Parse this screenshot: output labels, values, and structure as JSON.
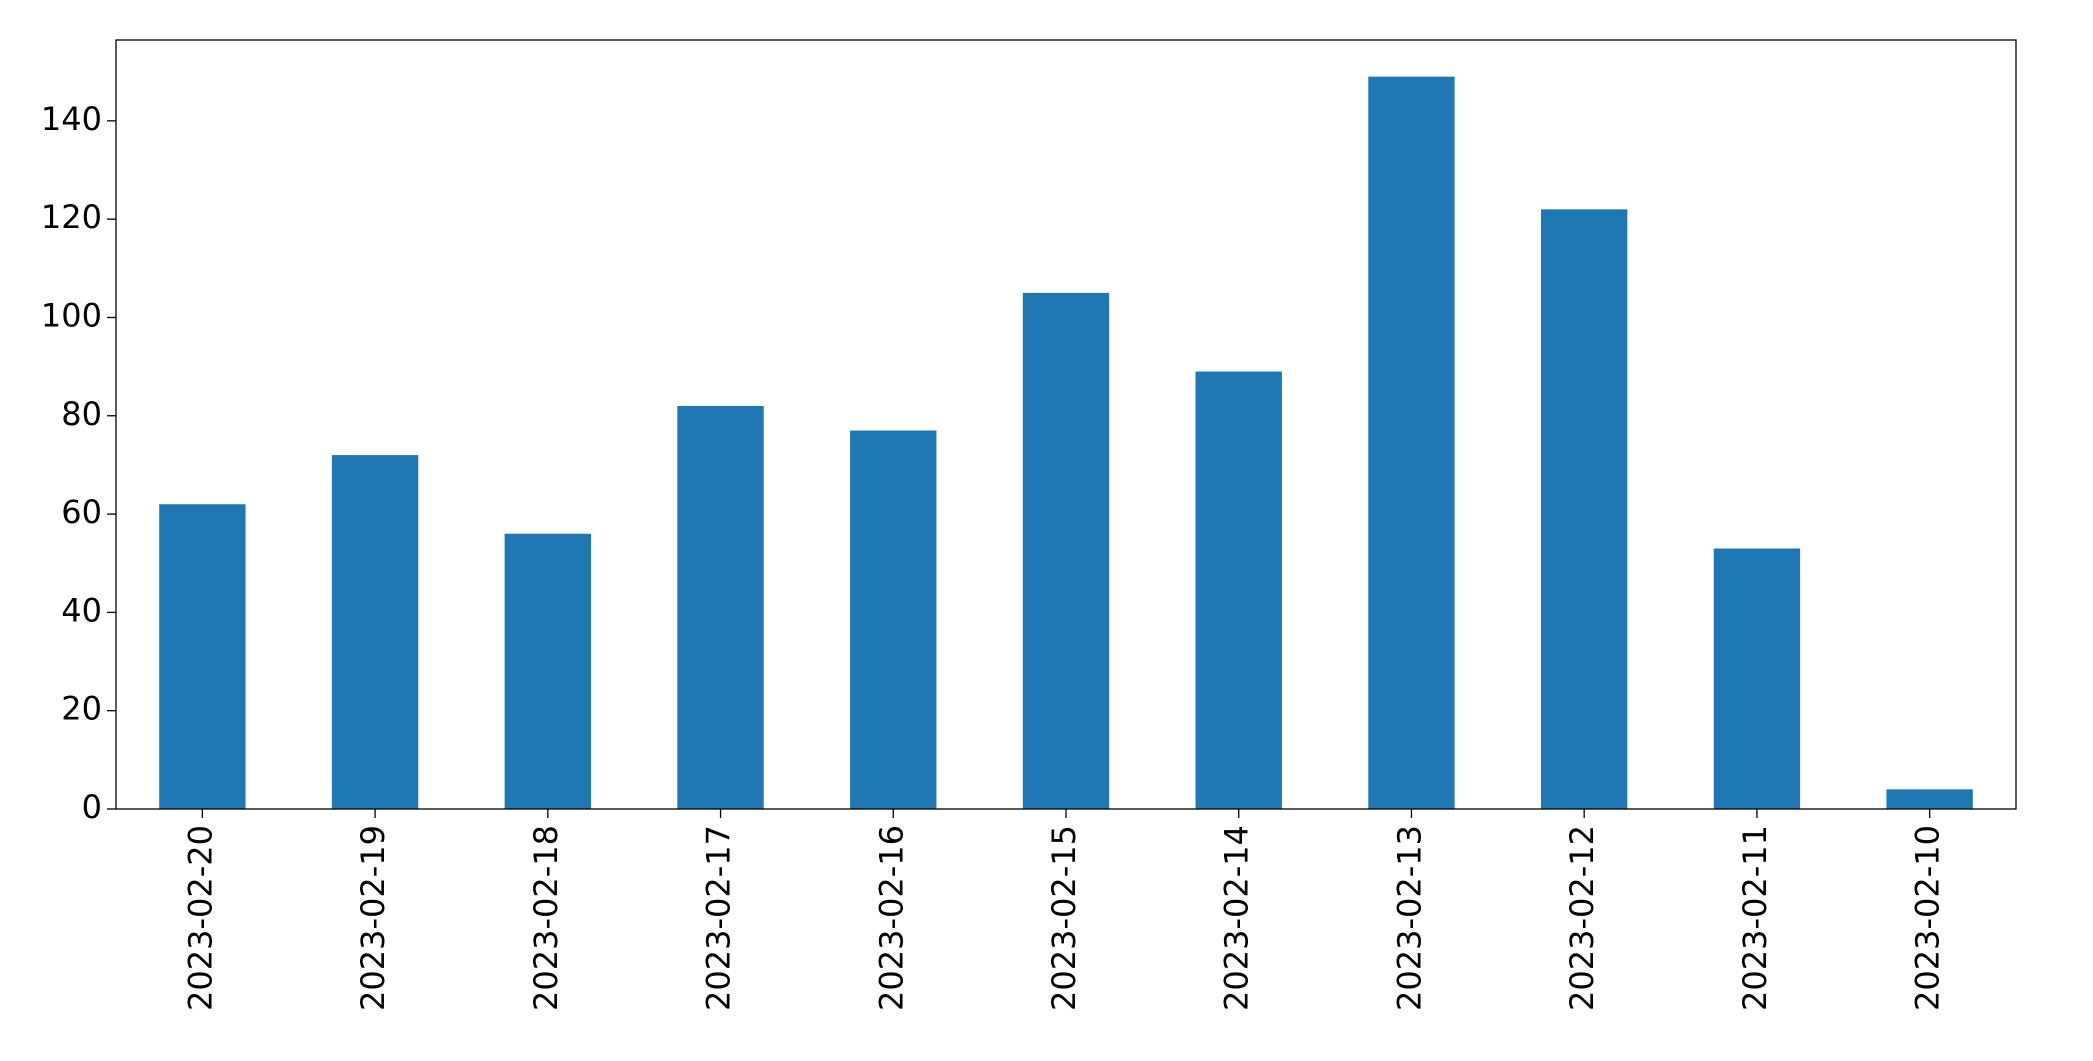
{
  "chart_data": {
    "type": "bar",
    "categories": [
      "2023-02-20",
      "2023-02-19",
      "2023-02-18",
      "2023-02-17",
      "2023-02-16",
      "2023-02-15",
      "2023-02-14",
      "2023-02-13",
      "2023-02-12",
      "2023-02-11",
      "2023-02-10"
    ],
    "values": [
      62,
      72,
      56,
      82,
      77,
      105,
      89,
      149,
      122,
      53,
      4
    ],
    "color": "#1f77b4",
    "ylim": [
      0,
      156.45
    ],
    "yticks": [
      0,
      20,
      40,
      60,
      80,
      100,
      120,
      140
    ],
    "grid": false
  }
}
